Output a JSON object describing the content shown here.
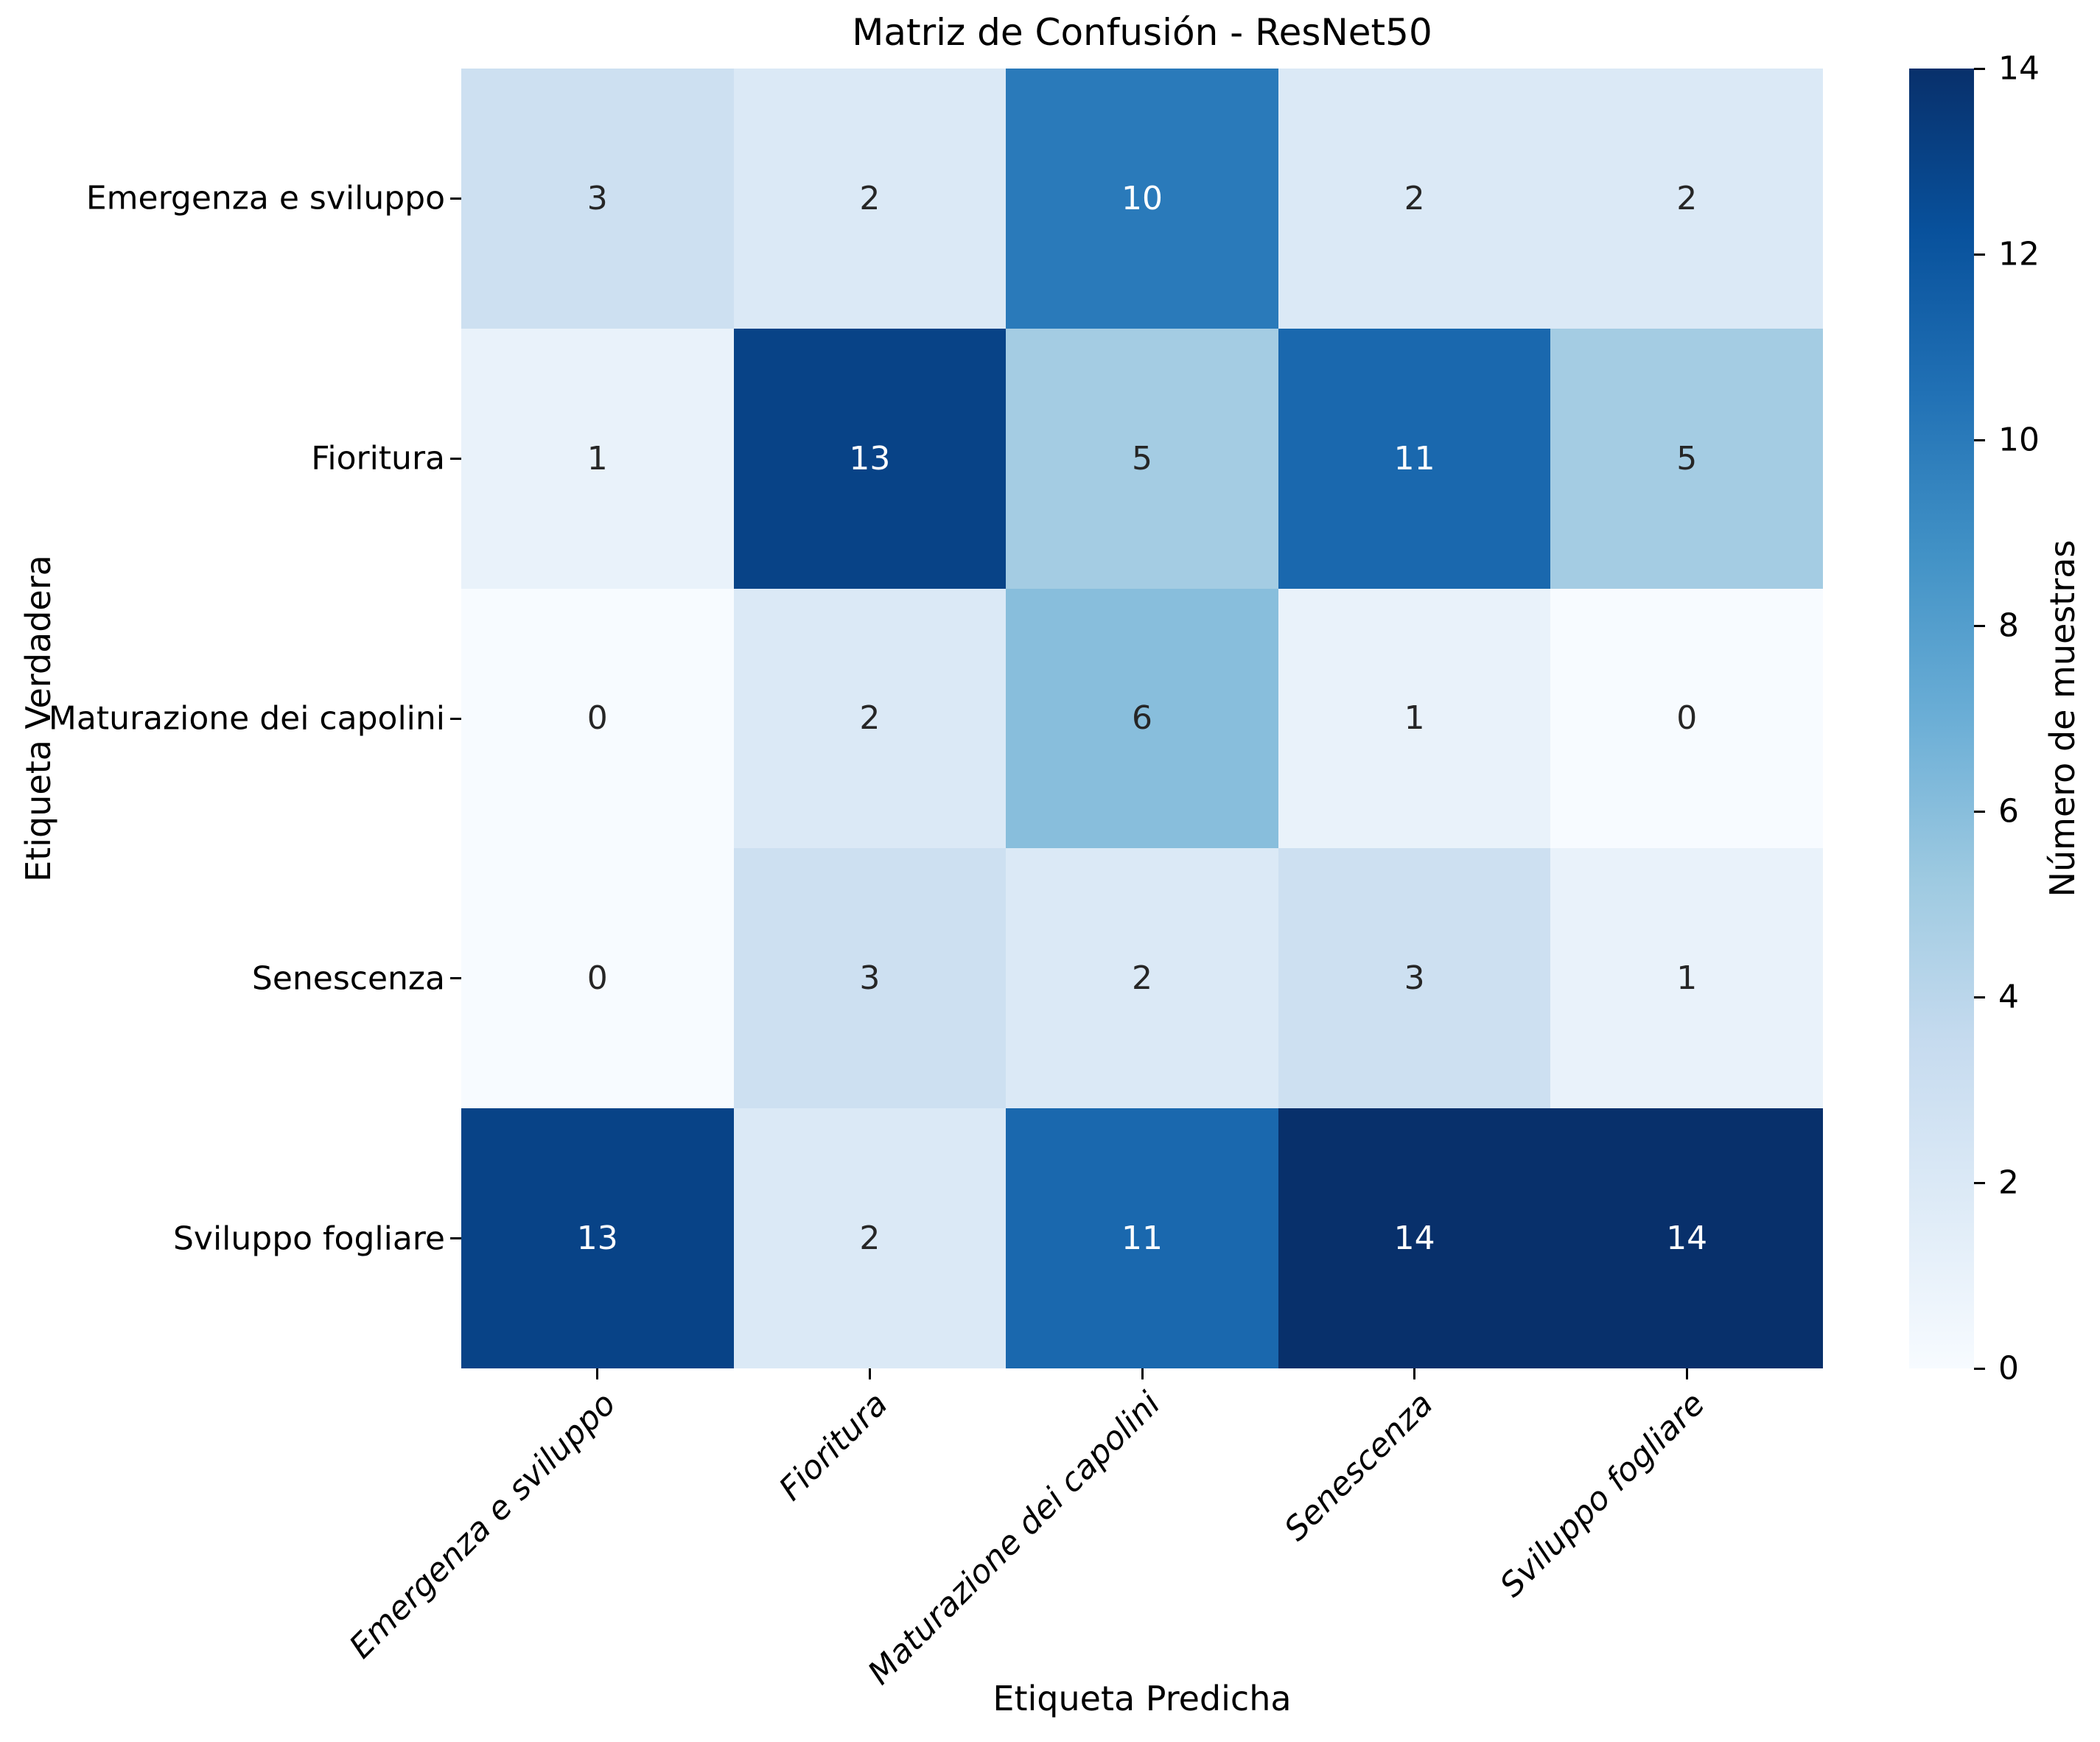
{
  "chart_data": {
    "type": "heatmap",
    "title": "Matriz de Confusión - ResNet50",
    "xlabel": "Etiqueta Predicha",
    "ylabel": "Etiqueta Verdadera",
    "x_categories": [
      "Emergenza e sviluppo",
      "Fioritura",
      "Maturazione dei capolini",
      "Senescenza",
      "Sviluppo fogliare"
    ],
    "y_categories": [
      "Emergenza e sviluppo",
      "Fioritura",
      "Maturazione dei capolini",
      "Senescenza",
      "Sviluppo fogliare"
    ],
    "matrix": [
      [
        3,
        2,
        10,
        2,
        2
      ],
      [
        1,
        13,
        5,
        11,
        5
      ],
      [
        0,
        2,
        6,
        1,
        0
      ],
      [
        0,
        3,
        2,
        3,
        1
      ],
      [
        13,
        2,
        11,
        14,
        14
      ]
    ],
    "colorbar": {
      "label": "Número de muestras",
      "ticks": [
        0,
        2,
        4,
        6,
        8,
        10,
        12,
        14
      ],
      "min": 0,
      "max": 14
    },
    "colormap": {
      "name": "Blues",
      "stops": [
        {
          "pos": 0.0,
          "color": "#f7fbff"
        },
        {
          "pos": 0.125,
          "color": "#deebf7"
        },
        {
          "pos": 0.25,
          "color": "#c6dbef"
        },
        {
          "pos": 0.375,
          "color": "#9ecae1"
        },
        {
          "pos": 0.5,
          "color": "#6baed6"
        },
        {
          "pos": 0.625,
          "color": "#4292c6"
        },
        {
          "pos": 0.75,
          "color": "#2171b5"
        },
        {
          "pos": 0.875,
          "color": "#08519c"
        },
        {
          "pos": 1.0,
          "color": "#08306b"
        }
      ]
    },
    "text_colors": {
      "on_dark": "#ffffff",
      "on_light": "#262626",
      "luminance_threshold": 0.408
    },
    "layout": {
      "grid": "off",
      "legend": "colorbar-right",
      "x_tick_rotation_deg": 45,
      "x_tick_style": "italic"
    }
  }
}
